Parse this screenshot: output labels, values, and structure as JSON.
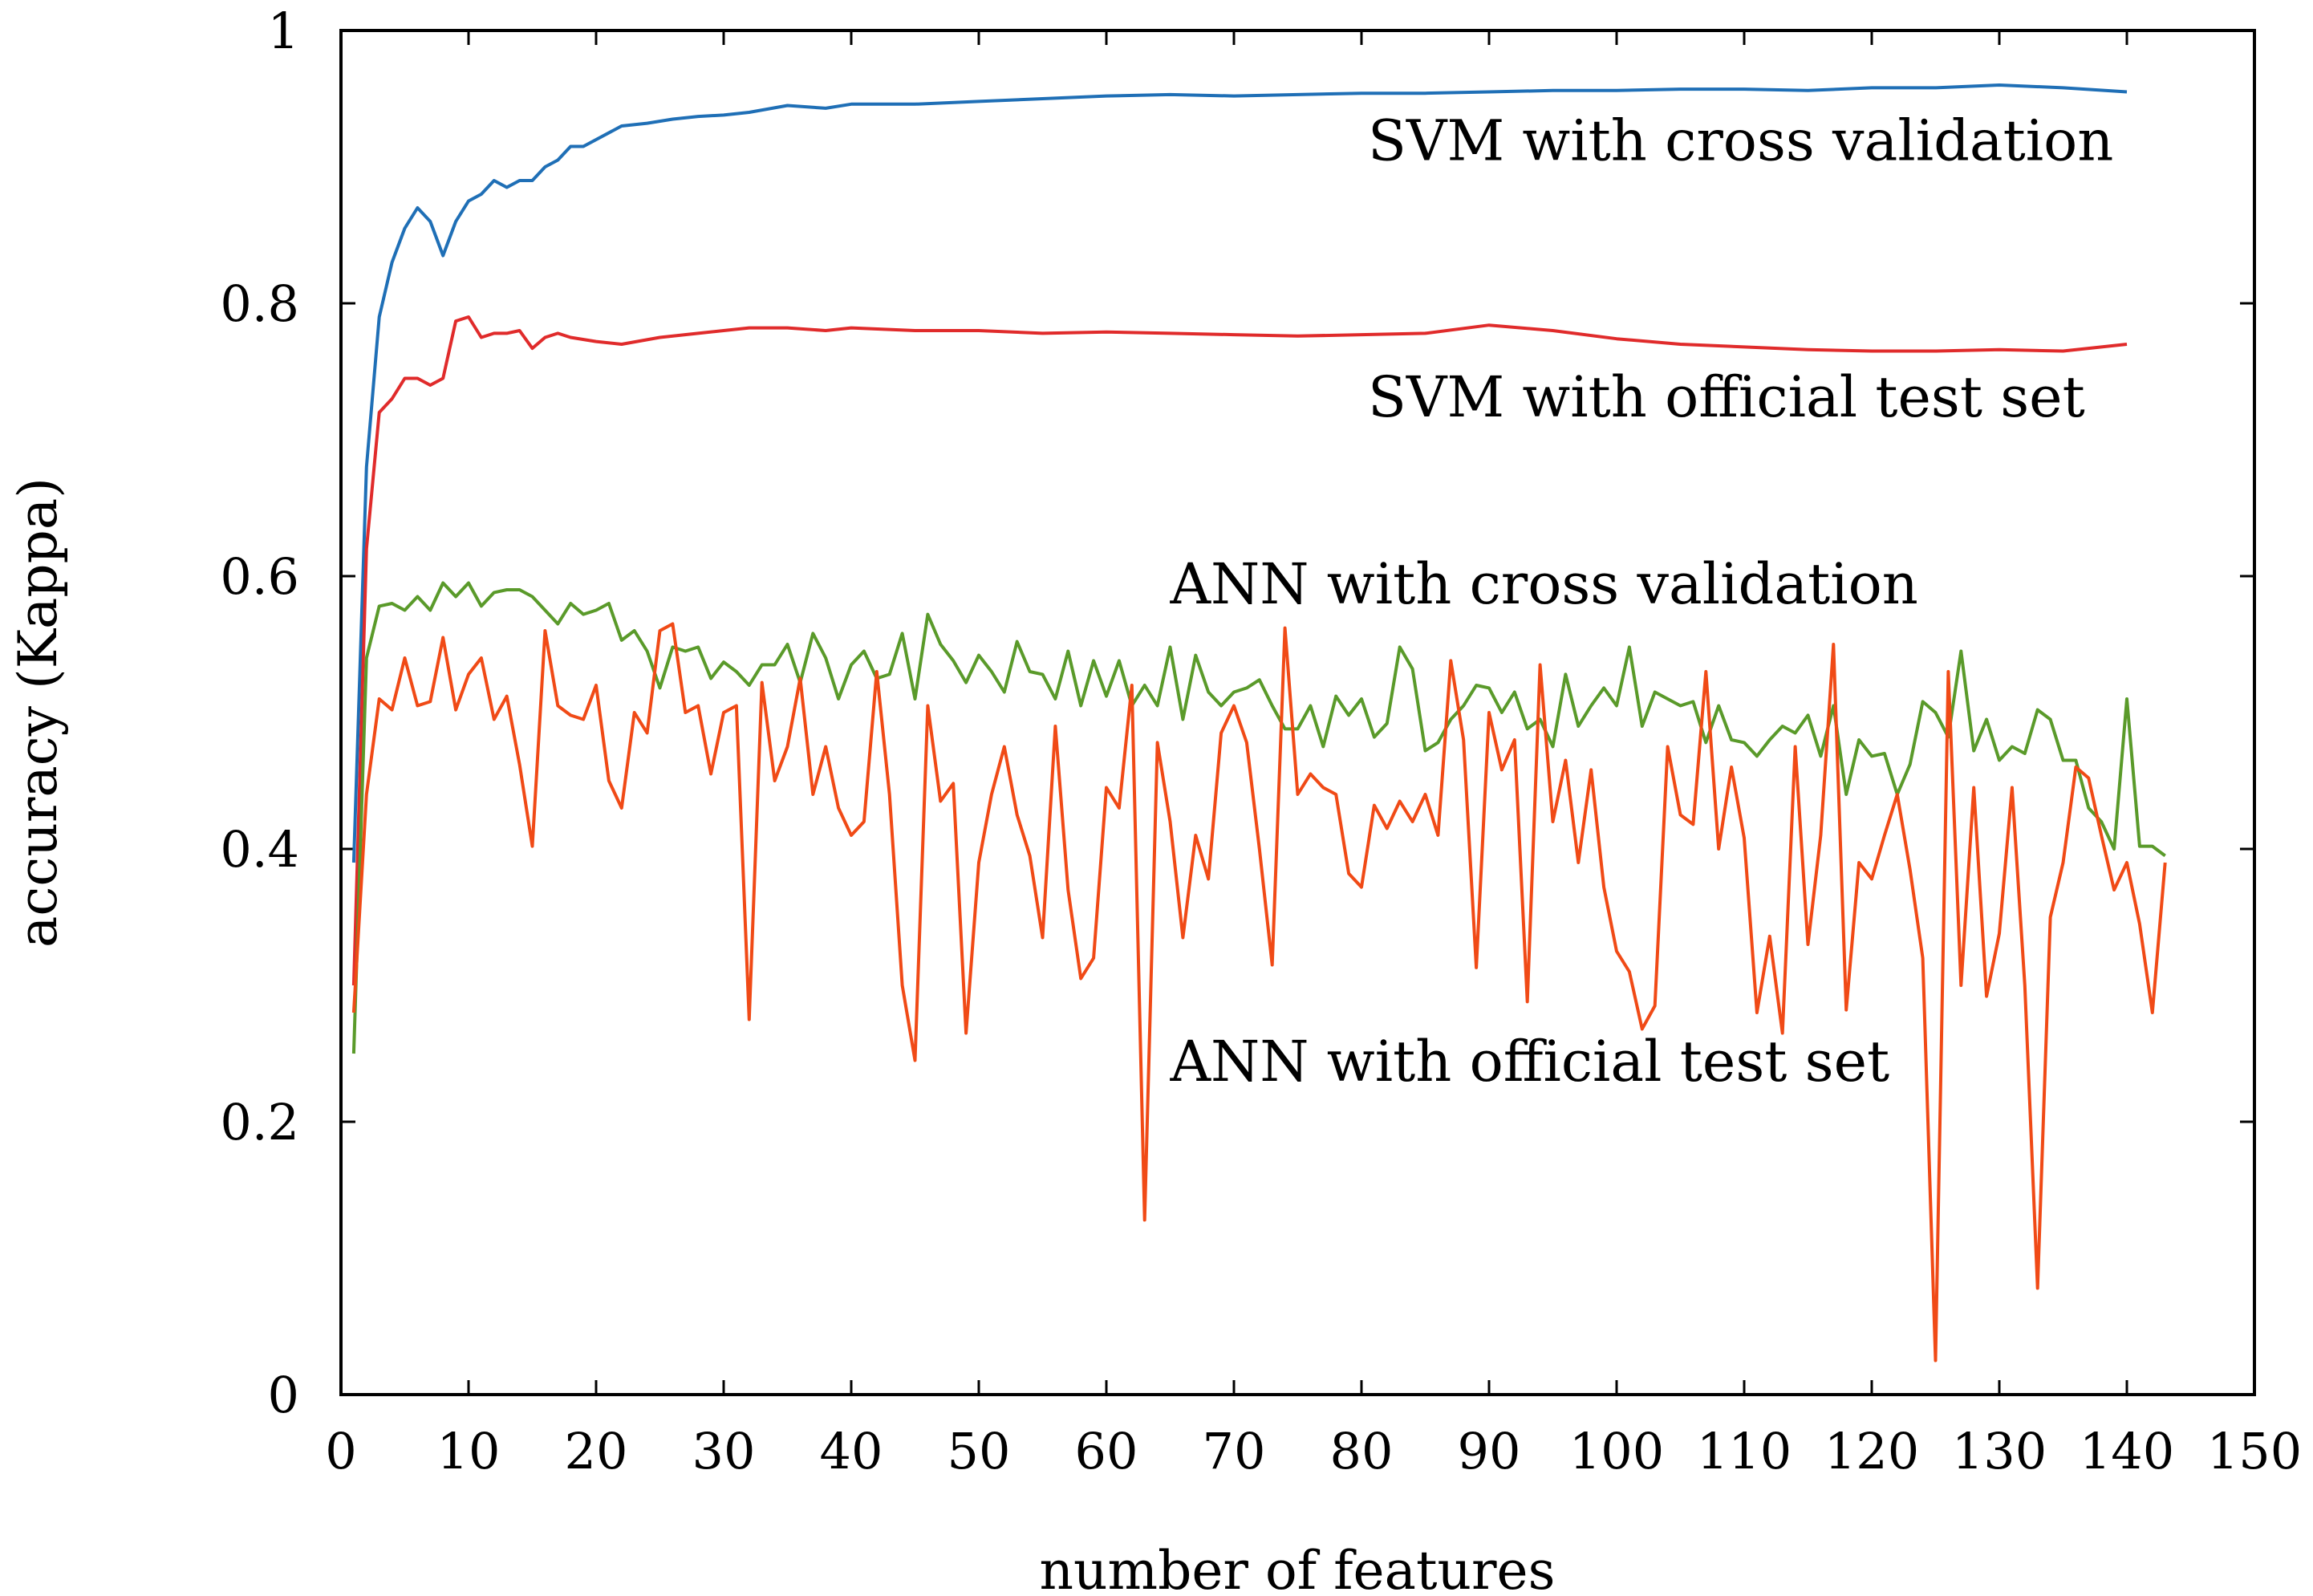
{
  "chart_data": {
    "type": "line",
    "title": "",
    "xlabel": "number of features",
    "ylabel": "accuracy (Kappa)",
    "xlim": [
      0,
      150
    ],
    "ylim": [
      0,
      1
    ],
    "xticks": [
      0,
      10,
      20,
      30,
      40,
      50,
      60,
      70,
      80,
      90,
      100,
      110,
      120,
      130,
      140,
      150
    ],
    "yticks": [
      0,
      0.2,
      0.4,
      0.6,
      0.8,
      1
    ],
    "ytick_labels": [
      "0",
      "0.2",
      "0.4",
      "0.6",
      "0.8",
      "1"
    ],
    "grid": false,
    "legend": "none",
    "annotations": [
      {
        "text": "SVM with cross validation",
        "x": 80.5,
        "y": 0.905
      },
      {
        "text": "SVM with official test set",
        "x": 80.5,
        "y": 0.717
      },
      {
        "text": "ANN with cross validation",
        "x": 65,
        "y": 0.58
      },
      {
        "text": "ANN with official test set",
        "x": 65,
        "y": 0.23
      }
    ],
    "series": [
      {
        "color": "#1f6fb6",
        "x": [
          1,
          2,
          3,
          4,
          5,
          6,
          7,
          8,
          9,
          10,
          11,
          12,
          13,
          14,
          15,
          16,
          17,
          18,
          19,
          20,
          22,
          24,
          26,
          28,
          30,
          32,
          35,
          38,
          40,
          45,
          50,
          55,
          60,
          65,
          70,
          75,
          80,
          85,
          90,
          95,
          100,
          105,
          110,
          115,
          120,
          125,
          130,
          135,
          140
        ],
        "y": [
          0.39,
          0.68,
          0.79,
          0.83,
          0.855,
          0.87,
          0.86,
          0.835,
          0.86,
          0.875,
          0.88,
          0.89,
          0.885,
          0.89,
          0.89,
          0.9,
          0.905,
          0.915,
          0.915,
          0.92,
          0.93,
          0.932,
          0.935,
          0.937,
          0.938,
          0.94,
          0.945,
          0.943,
          0.946,
          0.946,
          0.948,
          0.95,
          0.952,
          0.953,
          0.952,
          0.953,
          0.954,
          0.954,
          0.955,
          0.956,
          0.956,
          0.957,
          0.957,
          0.956,
          0.958,
          0.958,
          0.96,
          0.958,
          0.955
        ]
      },
      {
        "color": "#e02b2b",
        "x": [
          1,
          2,
          3,
          4,
          5,
          6,
          7,
          8,
          9,
          10,
          11,
          12,
          13,
          14,
          15,
          16,
          17,
          18,
          20,
          22,
          25,
          28,
          30,
          32,
          35,
          38,
          40,
          45,
          50,
          55,
          60,
          65,
          70,
          75,
          80,
          85,
          90,
          95,
          100,
          105,
          110,
          115,
          120,
          125,
          130,
          135,
          140
        ],
        "y": [
          0.3,
          0.62,
          0.72,
          0.73,
          0.745,
          0.745,
          0.74,
          0.745,
          0.787,
          0.79,
          0.775,
          0.778,
          0.778,
          0.78,
          0.767,
          0.775,
          0.778,
          0.775,
          0.772,
          0.77,
          0.775,
          0.778,
          0.78,
          0.782,
          0.782,
          0.78,
          0.782,
          0.78,
          0.78,
          0.778,
          0.779,
          0.778,
          0.777,
          0.776,
          0.777,
          0.778,
          0.784,
          0.78,
          0.774,
          0.77,
          0.768,
          0.766,
          0.765,
          0.765,
          0.766,
          0.765,
          0.77
        ]
      },
      {
        "color": "#5a9a2a",
        "x": [
          1,
          2,
          3,
          4,
          5,
          6,
          7,
          8,
          9,
          10,
          11,
          12,
          13,
          14,
          15,
          16,
          17,
          18,
          19,
          20,
          21,
          22,
          23,
          24,
          25,
          26,
          27,
          28,
          29,
          30,
          31,
          32,
          33,
          34,
          35,
          36,
          37,
          38,
          39,
          40,
          41,
          42,
          43,
          44,
          45,
          46,
          47,
          48,
          49,
          50,
          51,
          52,
          53,
          54,
          55,
          56,
          57,
          58,
          59,
          60,
          61,
          62,
          63,
          64,
          65,
          66,
          67,
          68,
          69,
          70,
          71,
          72,
          73,
          74,
          75,
          76,
          77,
          78,
          79,
          80,
          81,
          82,
          83,
          84,
          85,
          86,
          87,
          88,
          89,
          90,
          91,
          92,
          93,
          94,
          95,
          96,
          97,
          98,
          99,
          100,
          101,
          102,
          103,
          104,
          105,
          106,
          107,
          108,
          109,
          110,
          111,
          112,
          113,
          114,
          115,
          116,
          117,
          118,
          119,
          120,
          121,
          122,
          123,
          124,
          125,
          126,
          127,
          128,
          129,
          130,
          131,
          132,
          133,
          134,
          135,
          136,
          137,
          138,
          139,
          140,
          141,
          142,
          143
        ],
        "y": [
          0.25,
          0.54,
          0.578,
          0.58,
          0.575,
          0.585,
          0.575,
          0.595,
          0.585,
          0.595,
          0.578,
          0.588,
          0.59,
          0.59,
          0.585,
          0.575,
          0.565,
          0.58,
          0.572,
          0.575,
          0.58,
          0.553,
          0.56,
          0.545,
          0.518,
          0.548,
          0.545,
          0.548,
          0.525,
          0.537,
          0.53,
          0.52,
          0.535,
          0.535,
          0.55,
          0.522,
          0.558,
          0.54,
          0.51,
          0.535,
          0.545,
          0.525,
          0.528,
          0.558,
          0.51,
          0.572,
          0.55,
          0.538,
          0.522,
          0.542,
          0.53,
          0.515,
          0.552,
          0.53,
          0.528,
          0.51,
          0.545,
          0.505,
          0.538,
          0.512,
          0.538,
          0.505,
          0.52,
          0.505,
          0.548,
          0.495,
          0.542,
          0.515,
          0.505,
          0.515,
          0.518,
          0.524,
          0.505,
          0.488,
          0.488,
          0.505,
          0.475,
          0.512,
          0.498,
          0.51,
          0.482,
          0.492,
          0.548,
          0.532,
          0.472,
          0.478,
          0.495,
          0.505,
          0.52,
          0.518,
          0.5,
          0.515,
          0.488,
          0.495,
          0.475,
          0.528,
          0.49,
          0.505,
          0.518,
          0.505,
          0.548,
          0.49,
          0.515,
          0.51,
          0.505,
          0.508,
          0.478,
          0.505,
          0.48,
          0.478,
          0.468,
          0.48,
          0.49,
          0.485,
          0.498,
          0.468,
          0.505,
          0.44,
          0.48,
          0.468,
          0.47,
          0.44,
          0.462,
          0.508,
          0.5,
          0.482,
          0.545,
          0.472,
          0.495,
          0.465,
          0.475,
          0.47,
          0.502,
          0.495,
          0.465,
          0.465,
          0.43,
          0.42,
          0.4,
          0.51,
          0.402,
          0.402,
          0.395
        ]
      },
      {
        "color": "#f04a16",
        "x": [
          1,
          2,
          3,
          4,
          5,
          6,
          7,
          8,
          9,
          10,
          11,
          12,
          13,
          14,
          15,
          16,
          17,
          18,
          19,
          20,
          21,
          22,
          23,
          24,
          25,
          26,
          27,
          28,
          29,
          30,
          31,
          32,
          33,
          34,
          35,
          36,
          37,
          38,
          39,
          40,
          41,
          42,
          43,
          44,
          45,
          46,
          47,
          48,
          49,
          50,
          51,
          52,
          53,
          54,
          55,
          56,
          57,
          58,
          59,
          60,
          61,
          62,
          63,
          64,
          65,
          66,
          67,
          68,
          69,
          70,
          71,
          72,
          73,
          74,
          75,
          76,
          77,
          78,
          79,
          80,
          81,
          82,
          83,
          84,
          85,
          86,
          87,
          88,
          89,
          90,
          91,
          92,
          93,
          94,
          95,
          96,
          97,
          98,
          99,
          100,
          101,
          102,
          103,
          104,
          105,
          106,
          107,
          108,
          109,
          110,
          111,
          112,
          113,
          114,
          115,
          116,
          117,
          118,
          119,
          120,
          121,
          122,
          123,
          124,
          125,
          126,
          127,
          128,
          129,
          130,
          131,
          132,
          133,
          134,
          135,
          136,
          137,
          138,
          139,
          140,
          141,
          142,
          143
        ],
        "y": [
          0.28,
          0.44,
          0.51,
          0.502,
          0.54,
          0.505,
          0.508,
          0.555,
          0.502,
          0.528,
          0.54,
          0.495,
          0.512,
          0.462,
          0.402,
          0.56,
          0.505,
          0.498,
          0.495,
          0.52,
          0.45,
          0.43,
          0.5,
          0.485,
          0.56,
          0.565,
          0.5,
          0.505,
          0.455,
          0.5,
          0.505,
          0.275,
          0.522,
          0.45,
          0.475,
          0.525,
          0.44,
          0.475,
          0.43,
          0.41,
          0.42,
          0.53,
          0.44,
          0.3,
          0.245,
          0.505,
          0.435,
          0.448,
          0.265,
          0.39,
          0.44,
          0.475,
          0.425,
          0.395,
          0.335,
          0.49,
          0.37,
          0.305,
          0.32,
          0.445,
          0.43,
          0.52,
          0.128,
          0.478,
          0.42,
          0.335,
          0.41,
          0.378,
          0.485,
          0.505,
          0.478,
          0.4,
          0.315,
          0.562,
          0.44,
          0.455,
          0.445,
          0.44,
          0.382,
          0.372,
          0.432,
          0.415,
          0.435,
          0.42,
          0.44,
          0.41,
          0.538,
          0.48,
          0.313,
          0.5,
          0.458,
          0.48,
          0.288,
          0.535,
          0.42,
          0.465,
          0.39,
          0.458,
          0.372,
          0.325,
          0.31,
          0.268,
          0.285,
          0.475,
          0.425,
          0.418,
          0.53,
          0.4,
          0.46,
          0.408,
          0.28,
          0.336,
          0.265,
          0.475,
          0.33,
          0.41,
          0.55,
          0.282,
          0.39,
          0.378,
          0.41,
          0.44,
          0.385,
          0.32,
          0.025,
          0.53,
          0.3,
          0.445,
          0.292,
          0.338,
          0.445,
          0.3,
          0.078,
          0.35,
          0.39,
          0.46,
          0.452,
          0.41,
          0.37,
          0.39,
          0.345,
          0.28,
          0.39
        ]
      }
    ]
  }
}
